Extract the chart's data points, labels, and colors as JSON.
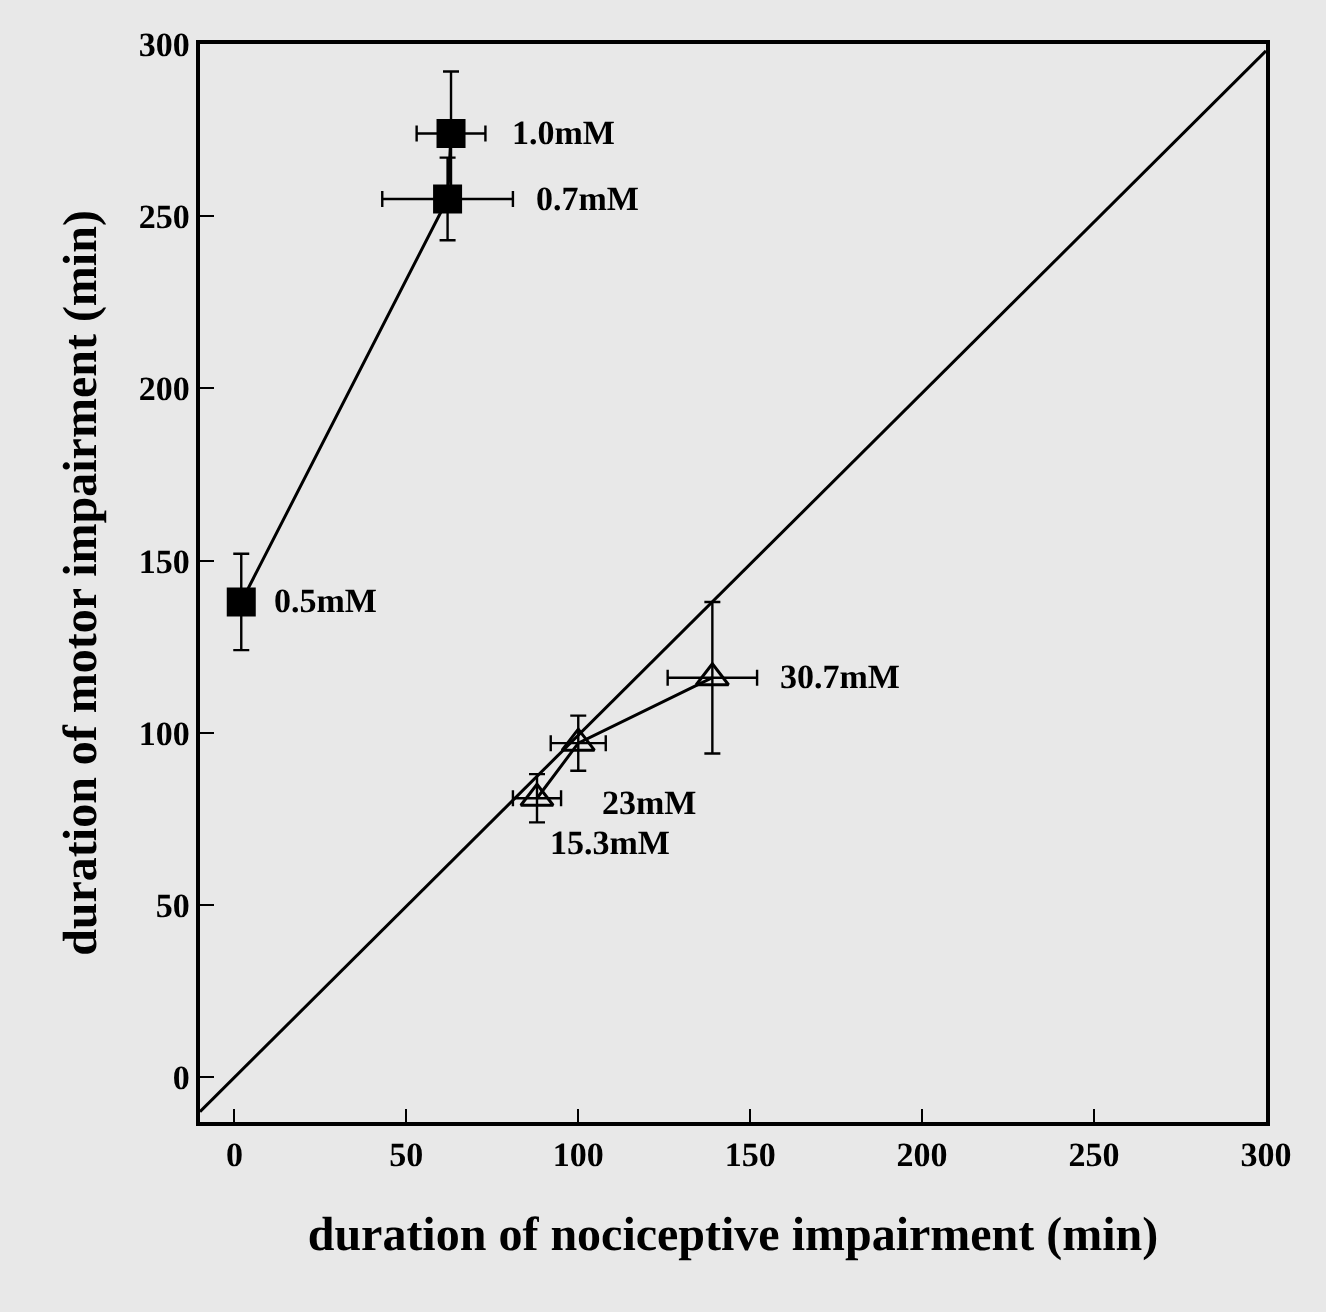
{
  "chart_data": {
    "type": "line",
    "xlabel": "duration of nociceptive impairment (min)",
    "ylabel": "duration of motor impairment (min)",
    "xlim": [
      -10,
      300
    ],
    "ylim": [
      -13,
      300
    ],
    "xticks": [
      0,
      50,
      100,
      150,
      200,
      250,
      300
    ],
    "yticks": [
      0,
      50,
      100,
      150,
      200,
      250,
      300
    ],
    "series": [
      {
        "color": "#000000",
        "marker": "none",
        "x": [
          -10,
          300
        ],
        "values": [
          -10,
          298
        ]
      },
      {
        "color": "#000000",
        "marker": "square",
        "x": [
          2,
          62,
          63
        ],
        "values": [
          138,
          255,
          274
        ],
        "xerrors": [
          null,
          19,
          10
        ],
        "errors": [
          14,
          12,
          18
        ]
      },
      {
        "color": "#000000",
        "marker": "triangle",
        "x": [
          88,
          100,
          139
        ],
        "values": [
          81,
          97,
          116
        ],
        "xerrors": [
          7,
          8,
          13
        ],
        "errors": [
          7,
          8,
          22
        ]
      }
    ],
    "annotations": [
      {
        "text": "0.5mM",
        "x": 2,
        "y": 138
      },
      {
        "text": "0.7mM",
        "x": 62,
        "y": 255
      },
      {
        "text": "1.0mM",
        "x": 63,
        "y": 274
      },
      {
        "text": "15.3mM",
        "x": 88,
        "y": 81
      },
      {
        "text": "23mM",
        "x": 100,
        "y": 97
      },
      {
        "text": "30.7mM",
        "x": 139,
        "y": 116
      }
    ]
  }
}
